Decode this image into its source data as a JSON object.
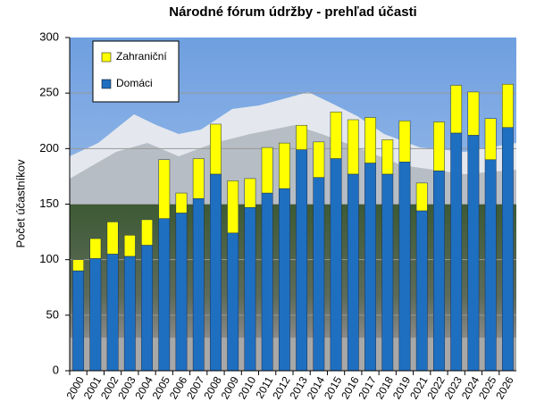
{
  "chart_data": {
    "type": "stacked-bar",
    "title": "Národné fórum údržby  - prehľad účasti",
    "y_label": "Počet  účastníkov",
    "categories": [
      "2000",
      "2001",
      "2002",
      "2003",
      "2004",
      "2005",
      "2006",
      "2007",
      "2008",
      "2009",
      "2010",
      "2011",
      "2012",
      "2013",
      "2014",
      "2015",
      "2016",
      "2017",
      "2018",
      "2019",
      "2021",
      "2022",
      "2023",
      "2024",
      "2025",
      "2026"
    ],
    "series": [
      {
        "name": "Domáci",
        "color": "#1f6fc0",
        "values": [
          90,
          101,
          105,
          103,
          113,
          137,
          142,
          155,
          177,
          124,
          147,
          160,
          164,
          199,
          174,
          191,
          177,
          187,
          177,
          188,
          144,
          180,
          214,
          212,
          190,
          219
        ]
      },
      {
        "name": "Zahraniční",
        "color": "#ffff00",
        "values": [
          10,
          18,
          29,
          19,
          23,
          53,
          18,
          36,
          45,
          47,
          26,
          41,
          41,
          22,
          32,
          42,
          49,
          41,
          31,
          37,
          25,
          44,
          43,
          39,
          37,
          39
        ]
      }
    ],
    "ylim": [
      0,
      300
    ],
    "yticks": [
      0,
      50,
      100,
      150,
      200,
      250,
      300
    ],
    "grid": true,
    "legend": "top-left"
  }
}
